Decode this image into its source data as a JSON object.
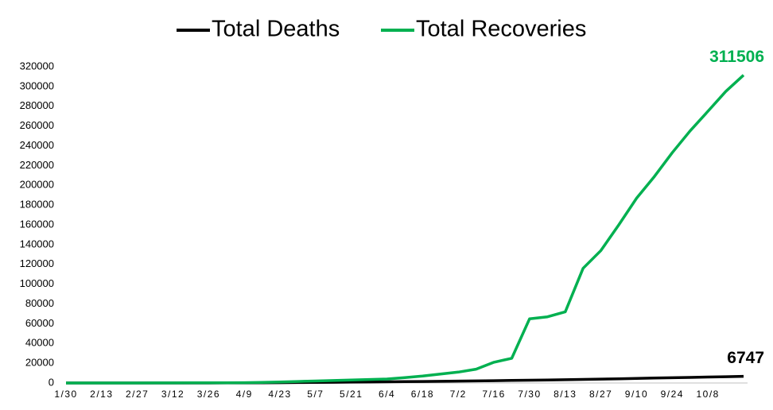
{
  "chart_data": {
    "type": "line",
    "categories": [
      "1/30",
      null,
      "2/13",
      null,
      "2/27",
      null,
      "3/12",
      null,
      "3/26",
      null,
      "4/9",
      null,
      "4/23",
      null,
      "5/7",
      null,
      "5/21",
      null,
      "6/4",
      null,
      "6/18",
      null,
      "7/2",
      null,
      "7/16",
      null,
      "7/30",
      null,
      "8/13",
      null,
      "8/27",
      null,
      "9/10",
      null,
      "9/24",
      null,
      "10/8",
      null,
      null
    ],
    "series": [
      {
        "name": "Total Deaths",
        "color": "#000000",
        "values": [
          0,
          0,
          0,
          0,
          0,
          0,
          0,
          10,
          30,
          60,
          100,
          200,
          300,
          450,
          600,
          750,
          900,
          1050,
          1200,
          1350,
          1500,
          1700,
          1900,
          2100,
          2300,
          2550,
          2800,
          3050,
          3300,
          3600,
          3900,
          4250,
          4600,
          4950,
          5300,
          5650,
          6000,
          6350,
          6747
        ]
      },
      {
        "name": "Total Recoveries",
        "color": "#00b050",
        "values": [
          0,
          0,
          0,
          0,
          0,
          50,
          100,
          150,
          200,
          250,
          300,
          600,
          1000,
          1500,
          2000,
          2500,
          3000,
          3500,
          4000,
          5500,
          7000,
          9000,
          11000,
          14000,
          21000,
          25000,
          65000,
          67000,
          72000,
          116000,
          134000,
          160000,
          187000,
          209000,
          233000,
          255000,
          275000,
          295000,
          311506
        ]
      }
    ],
    "ylim": [
      0,
      320000
    ],
    "yticks": [
      0,
      20000,
      40000,
      60000,
      80000,
      100000,
      120000,
      140000,
      160000,
      180000,
      200000,
      220000,
      240000,
      260000,
      280000,
      300000,
      320000
    ],
    "grid": false,
    "legend": "top"
  }
}
